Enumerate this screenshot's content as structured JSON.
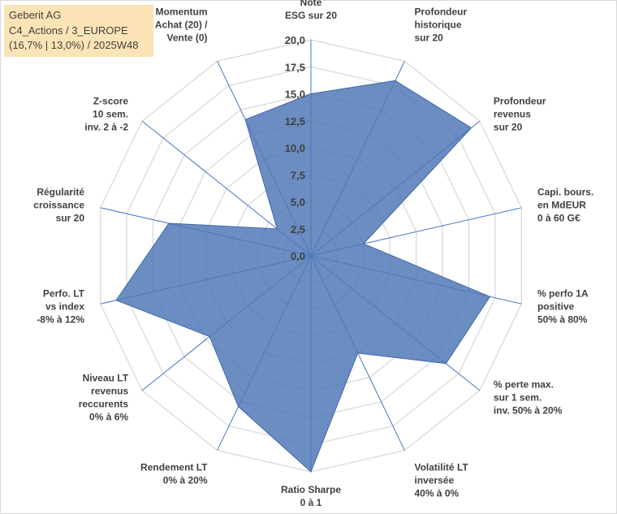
{
  "header": {
    "line1": "Geberit AG",
    "line2": "C4_Actions / 3_EUROPE",
    "line3": "(16,7% | 13,0%) / 2025W48"
  },
  "chart_data": {
    "type": "radar",
    "title": "Geberit AG",
    "axes": [
      [
        "Note",
        "ESG sur 20"
      ],
      [
        "Profondeur",
        "historique",
        "sur 20"
      ],
      [
        "Profondeur",
        "revenus",
        "sur 20"
      ],
      [
        "Capi. bours.",
        "en MdEUR",
        "0 à 60 G€"
      ],
      [
        "% perfo 1A",
        "positive",
        "50% à 80%"
      ],
      [
        "% perte max.",
        "sur 1 sem.",
        "inv. 50% à 20%"
      ],
      [
        "Volatilité LT",
        "inversée",
        "40% à 0%"
      ],
      [
        "Ratio Sharpe",
        "0 à 1"
      ],
      [
        "Rendement LT",
        "0% à 20%"
      ],
      [
        "Niveau LT",
        "revenus",
        "reccurents",
        "0% à 6%"
      ],
      [
        "Perfo. LT",
        "vs index",
        "-8% à 12%"
      ],
      [
        "Régularité",
        "croissance",
        "sur 20"
      ],
      [
        "Z-score",
        "10 sem.",
        "inv. 2 à -2"
      ],
      [
        "Momentum",
        "Achat (20) /",
        "Vente (0)"
      ]
    ],
    "values": [
      15.0,
      18.0,
      19.0,
      5.0,
      17.0,
      16.0,
      10.0,
      20.0,
      15.5,
      12.0,
      18.5,
      13.5,
      4.0,
      14.0
    ],
    "rlim": [
      0,
      20
    ],
    "ticks": [
      "0,0",
      "2,5",
      "5,0",
      "7,5",
      "10,0",
      "12,5",
      "15,0",
      "17,5",
      "20,0"
    ],
    "fill_color": "#4a74b4",
    "axis_color": "#4472c4",
    "grid_color": "#d9d9d9"
  }
}
